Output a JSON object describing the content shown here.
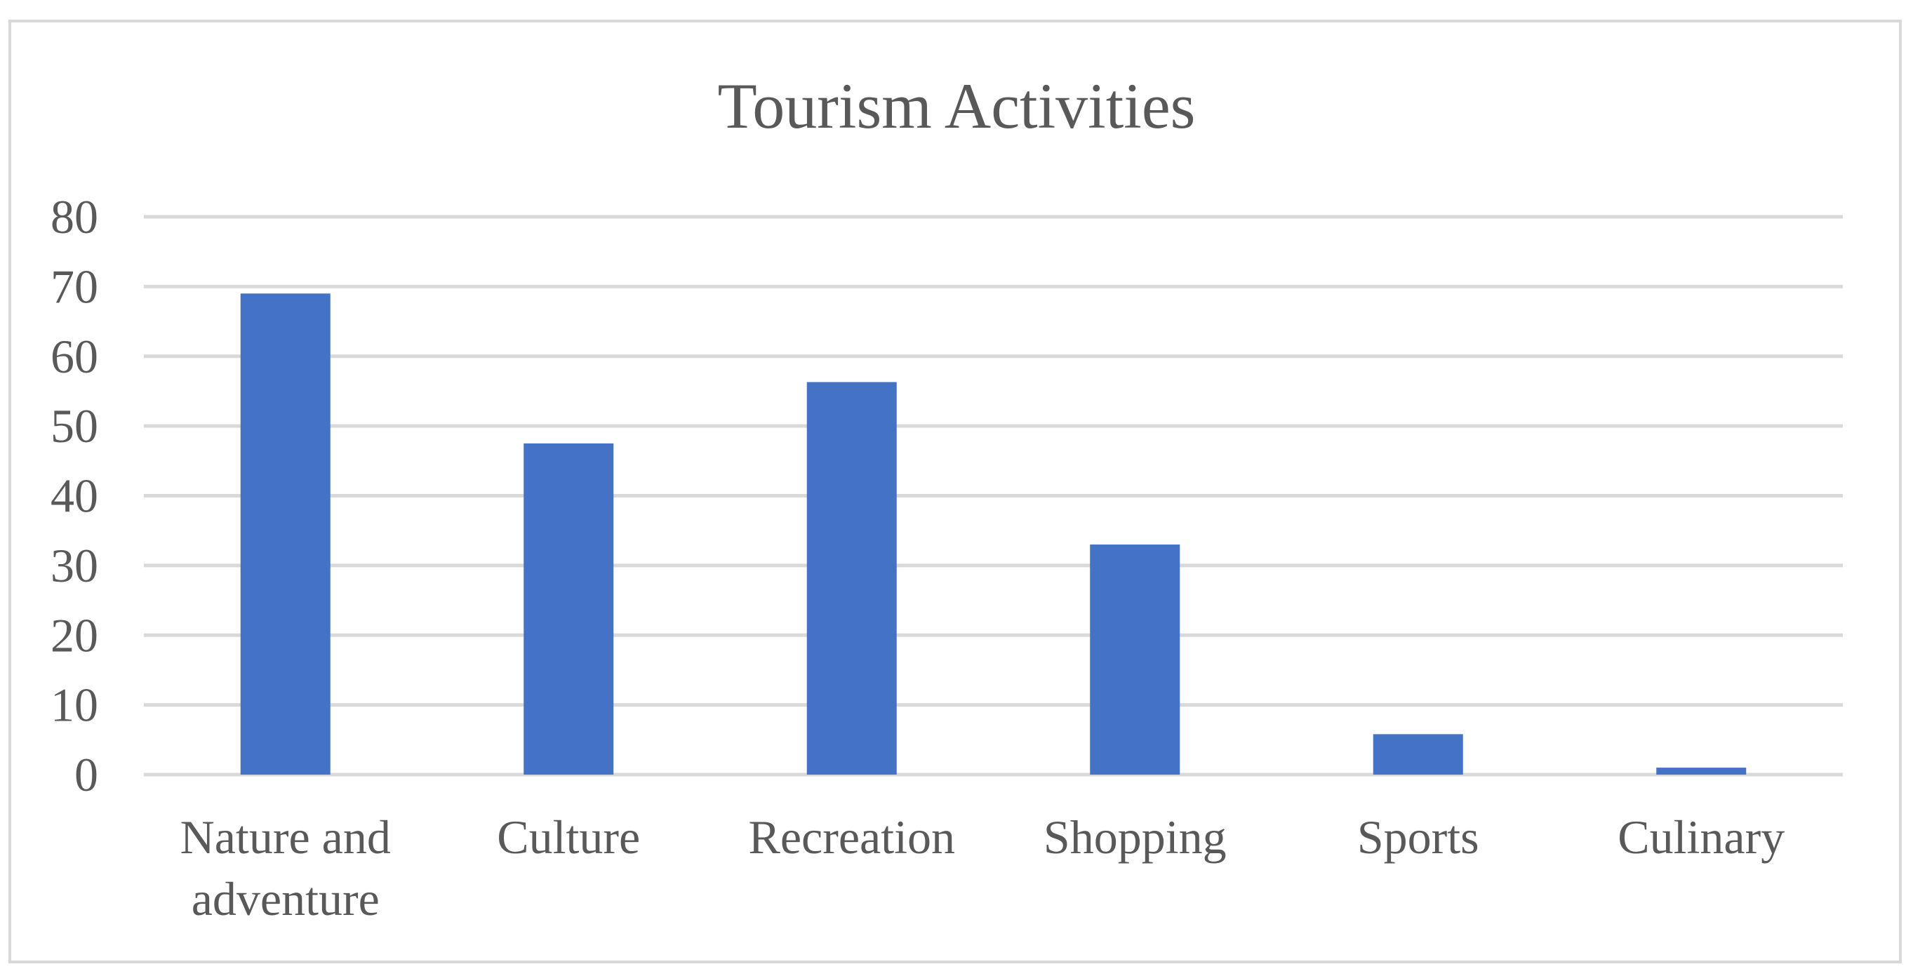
{
  "chart_data": {
    "type": "bar",
    "title": "Tourism Activities",
    "xlabel": "",
    "ylabel": "",
    "categories": [
      [
        "Nature and",
        "adventure"
      ],
      [
        "Culture"
      ],
      [
        "Recreation"
      ],
      [
        "Shopping"
      ],
      [
        "Sports"
      ],
      [
        "Culinary"
      ]
    ],
    "values": [
      69,
      47.5,
      56.3,
      33,
      5.8,
      1
    ],
    "ylim": [
      0,
      80
    ],
    "yticks": [
      0,
      10,
      20,
      30,
      40,
      50,
      60,
      70,
      80
    ],
    "grid": true,
    "legend": "none",
    "colors": {
      "bar": "#4472c4",
      "grid": "#d9d9d9",
      "text": "#595959"
    }
  }
}
